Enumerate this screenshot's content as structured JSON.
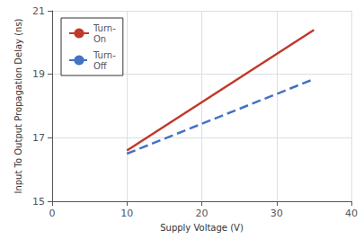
{
  "chart_data": {
    "type": "line",
    "xlabel": "Supply Voltage (V)",
    "ylabel": "Input To Output Propagation Delay (ns)",
    "series": [
      {
        "name": "Turn-\nOn",
        "color": "#c0392b",
        "x": [
          10,
          35
        ],
        "values": [
          16.6,
          20.4
        ],
        "line_style": "solid"
      },
      {
        "name": "Turn-\nOff",
        "color": "#4472c4",
        "x": [
          10,
          35
        ],
        "values": [
          16.5,
          18.85
        ],
        "line_style": "dashed"
      }
    ],
    "xlim": [
      0,
      40
    ],
    "xticks": [
      0,
      10,
      20,
      30,
      40
    ],
    "ylim": [
      15,
      21
    ],
    "yticks": [
      15,
      17,
      19,
      21
    ],
    "grid": true,
    "legend": "upper left"
  }
}
